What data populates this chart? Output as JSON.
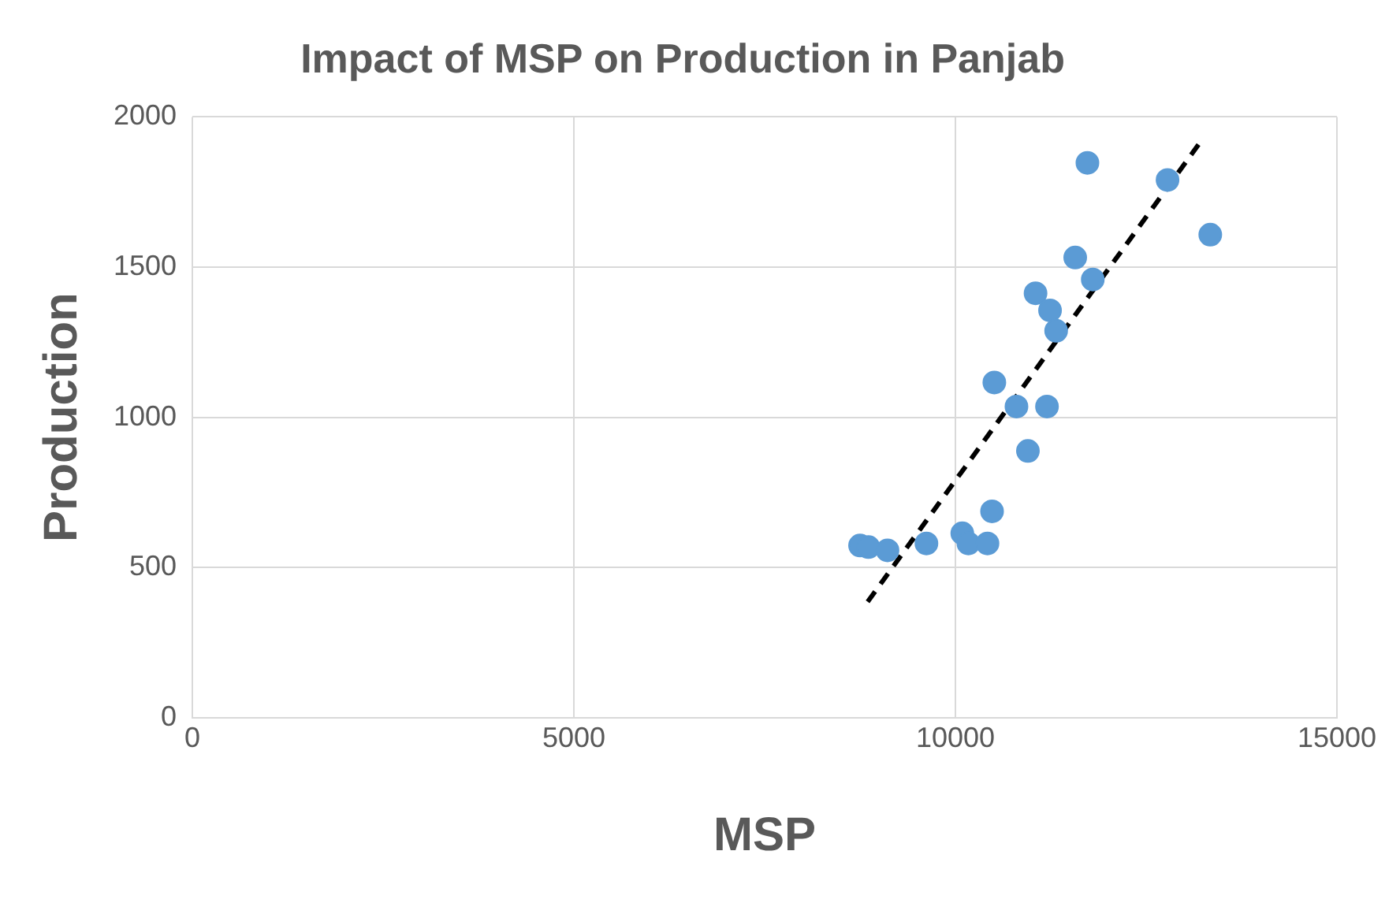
{
  "chart_data": {
    "type": "scatter",
    "title": "Impact of MSP on Production in Panjab",
    "xlabel": "MSP",
    "ylabel": "Production",
    "xlim": [
      0,
      15000
    ],
    "xticks": [
      0,
      5000,
      10000,
      15000
    ],
    "ylim": [
      0,
      2000
    ],
    "yticks": [
      0,
      500,
      1000,
      1500,
      2000
    ],
    "grid": true,
    "legend": false,
    "marker": "circle",
    "series": [
      {
        "type": "scatter",
        "color": "#5b9bd5",
        "x": [
          8750,
          8860,
          9110,
          9620,
          10090,
          10170,
          10420,
          10480,
          10510,
          10800,
          10950,
          11200,
          11050,
          11240,
          11320,
          11570,
          11800,
          11730,
          12780,
          13340
        ],
        "values": [
          573,
          568,
          557,
          580,
          614,
          580,
          580,
          687,
          1116,
          1036,
          888,
          1036,
          1413,
          1356,
          1288,
          1532,
          1459,
          1847,
          1790,
          1608
        ]
      },
      {
        "type": "line",
        "color": "#000000",
        "line_style": "dashed",
        "marker": "none",
        "x": [
          8850,
          13240
        ],
        "values": [
          386,
          1927
        ]
      }
    ]
  }
}
